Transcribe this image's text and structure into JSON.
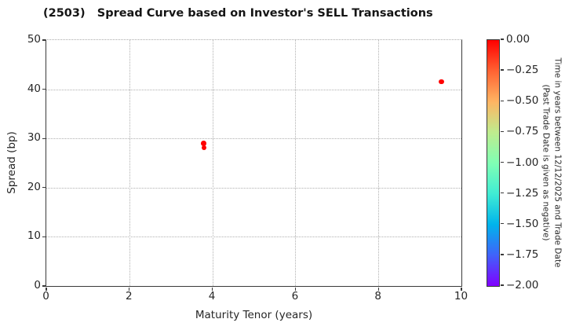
{
  "chart_data": {
    "type": "scatter",
    "title": "(2503)   Spread Curve based on Investor's SELL Transactions",
    "xlabel": "Maturity Tenor (years)",
    "ylabel": "Spread (bp)",
    "xlim": [
      0,
      10
    ],
    "ylim": [
      0,
      50
    ],
    "x_ticks": [
      0,
      2,
      4,
      6,
      8,
      10
    ],
    "y_ticks": [
      0,
      10,
      20,
      30,
      40,
      50
    ],
    "grid": true,
    "grid_style": "dotted",
    "points": [
      {
        "maturity_years": 3.79,
        "spread_bp": 29.0,
        "time_years": 0.0,
        "color": "#ff0000"
      },
      {
        "maturity_years": 3.8,
        "spread_bp": 28.1,
        "time_years": 0.0,
        "color": "#ff0000"
      },
      {
        "maturity_years": 9.52,
        "spread_bp": 41.5,
        "time_years": 0.0,
        "color": "#ff0000"
      }
    ],
    "colorbar": {
      "range_top_to_bottom": [
        0.0,
        -2.0
      ],
      "ticks": [
        "0.00",
        "−0.25",
        "−0.50",
        "−0.75",
        "−1.00",
        "−1.25",
        "−1.50",
        "−1.75",
        "−2.00"
      ],
      "label_line1": "Time in years between 12/12/2025 and Trade Date",
      "label_line2": "(Past Trade Date is given as negative)",
      "gradient_top_to_bottom": [
        "#ff0000",
        "#ff6232",
        "#ffb462",
        "#bfec8e",
        "#80ffb4",
        "#40ecd4",
        "#00b4ec",
        "#4062fa",
        "#8000ff"
      ]
    }
  }
}
